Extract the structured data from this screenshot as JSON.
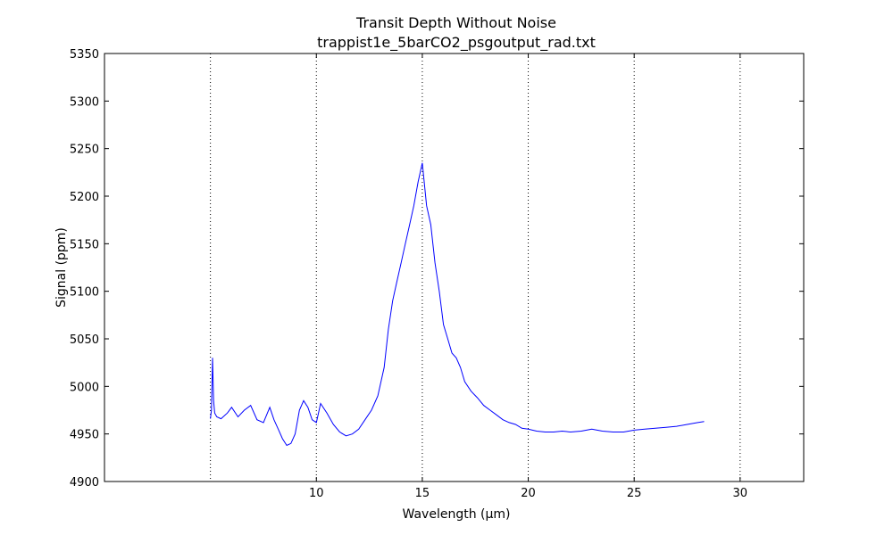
{
  "chart_data": {
    "type": "line",
    "title": "Transit Depth Without Noise",
    "subtitle": "trappist1e_5barCO2_psgoutput_rad.txt",
    "xlabel": "Wavelength (µm)",
    "ylabel": "Signal (ppm)",
    "xlim": [
      0,
      33
    ],
    "ylim": [
      4900,
      5350
    ],
    "xticks": [
      10,
      15,
      20,
      25,
      30
    ],
    "xtick_labels": [
      "10",
      "15",
      "20",
      "25",
      "30"
    ],
    "vgrid_x": [
      5,
      10,
      15,
      20,
      25,
      30
    ],
    "yticks": [
      4900,
      4950,
      5000,
      5050,
      5100,
      5150,
      5200,
      5250,
      5300,
      5350
    ],
    "ytick_labels": [
      "4900",
      "4950",
      "5000",
      "5050",
      "5100",
      "5150",
      "5200",
      "5250",
      "5300",
      "5350"
    ],
    "grid": "x-dotted",
    "legend": "none",
    "series_color": "#0000ff",
    "series": [
      {
        "x": [
          5.0,
          5.05,
          5.1,
          5.15,
          5.2,
          5.3,
          5.5,
          5.8,
          6.0,
          6.3,
          6.6,
          6.9,
          7.2,
          7.5,
          7.8,
          8.0,
          8.2,
          8.4,
          8.6,
          8.8,
          9.0,
          9.2,
          9.4,
          9.6,
          9.8,
          10.0,
          10.2,
          10.5,
          10.8,
          11.1,
          11.4,
          11.7,
          12.0,
          12.3,
          12.6,
          12.9,
          13.2,
          13.4,
          13.6,
          13.8,
          14.0,
          14.2,
          14.4,
          14.6,
          14.8,
          15.0,
          15.2,
          15.4,
          15.6,
          15.8,
          16.0,
          16.2,
          16.4,
          16.6,
          16.8,
          17.0,
          17.3,
          17.6,
          17.9,
          18.2,
          18.5,
          18.8,
          19.1,
          19.4,
          19.7,
          20.0,
          20.4,
          20.8,
          21.2,
          21.6,
          22.0,
          22.5,
          23.0,
          23.5,
          24.0,
          24.5,
          25.0,
          25.5,
          26.0,
          26.5,
          27.0,
          27.5,
          28.0,
          28.3
        ],
        "y": [
          4966,
          4975,
          5030,
          4985,
          4972,
          4968,
          4966,
          4972,
          4978,
          4968,
          4975,
          4980,
          4965,
          4962,
          4978,
          4965,
          4955,
          4945,
          4938,
          4940,
          4950,
          4975,
          4985,
          4978,
          4965,
          4962,
          4982,
          4972,
          4960,
          4952,
          4948,
          4950,
          4955,
          4965,
          4975,
          4990,
          5020,
          5060,
          5090,
          5110,
          5130,
          5150,
          5170,
          5190,
          5215,
          5235,
          5190,
          5170,
          5130,
          5100,
          5065,
          5050,
          5035,
          5030,
          5020,
          5005,
          4995,
          4988,
          4980,
          4975,
          4970,
          4965,
          4962,
          4960,
          4956,
          4955,
          4953,
          4952,
          4952,
          4953,
          4952,
          4953,
          4955,
          4953,
          4952,
          4952,
          4954,
          4955,
          4956,
          4957,
          4958,
          4960,
          4962,
          4963
        ]
      }
    ]
  }
}
